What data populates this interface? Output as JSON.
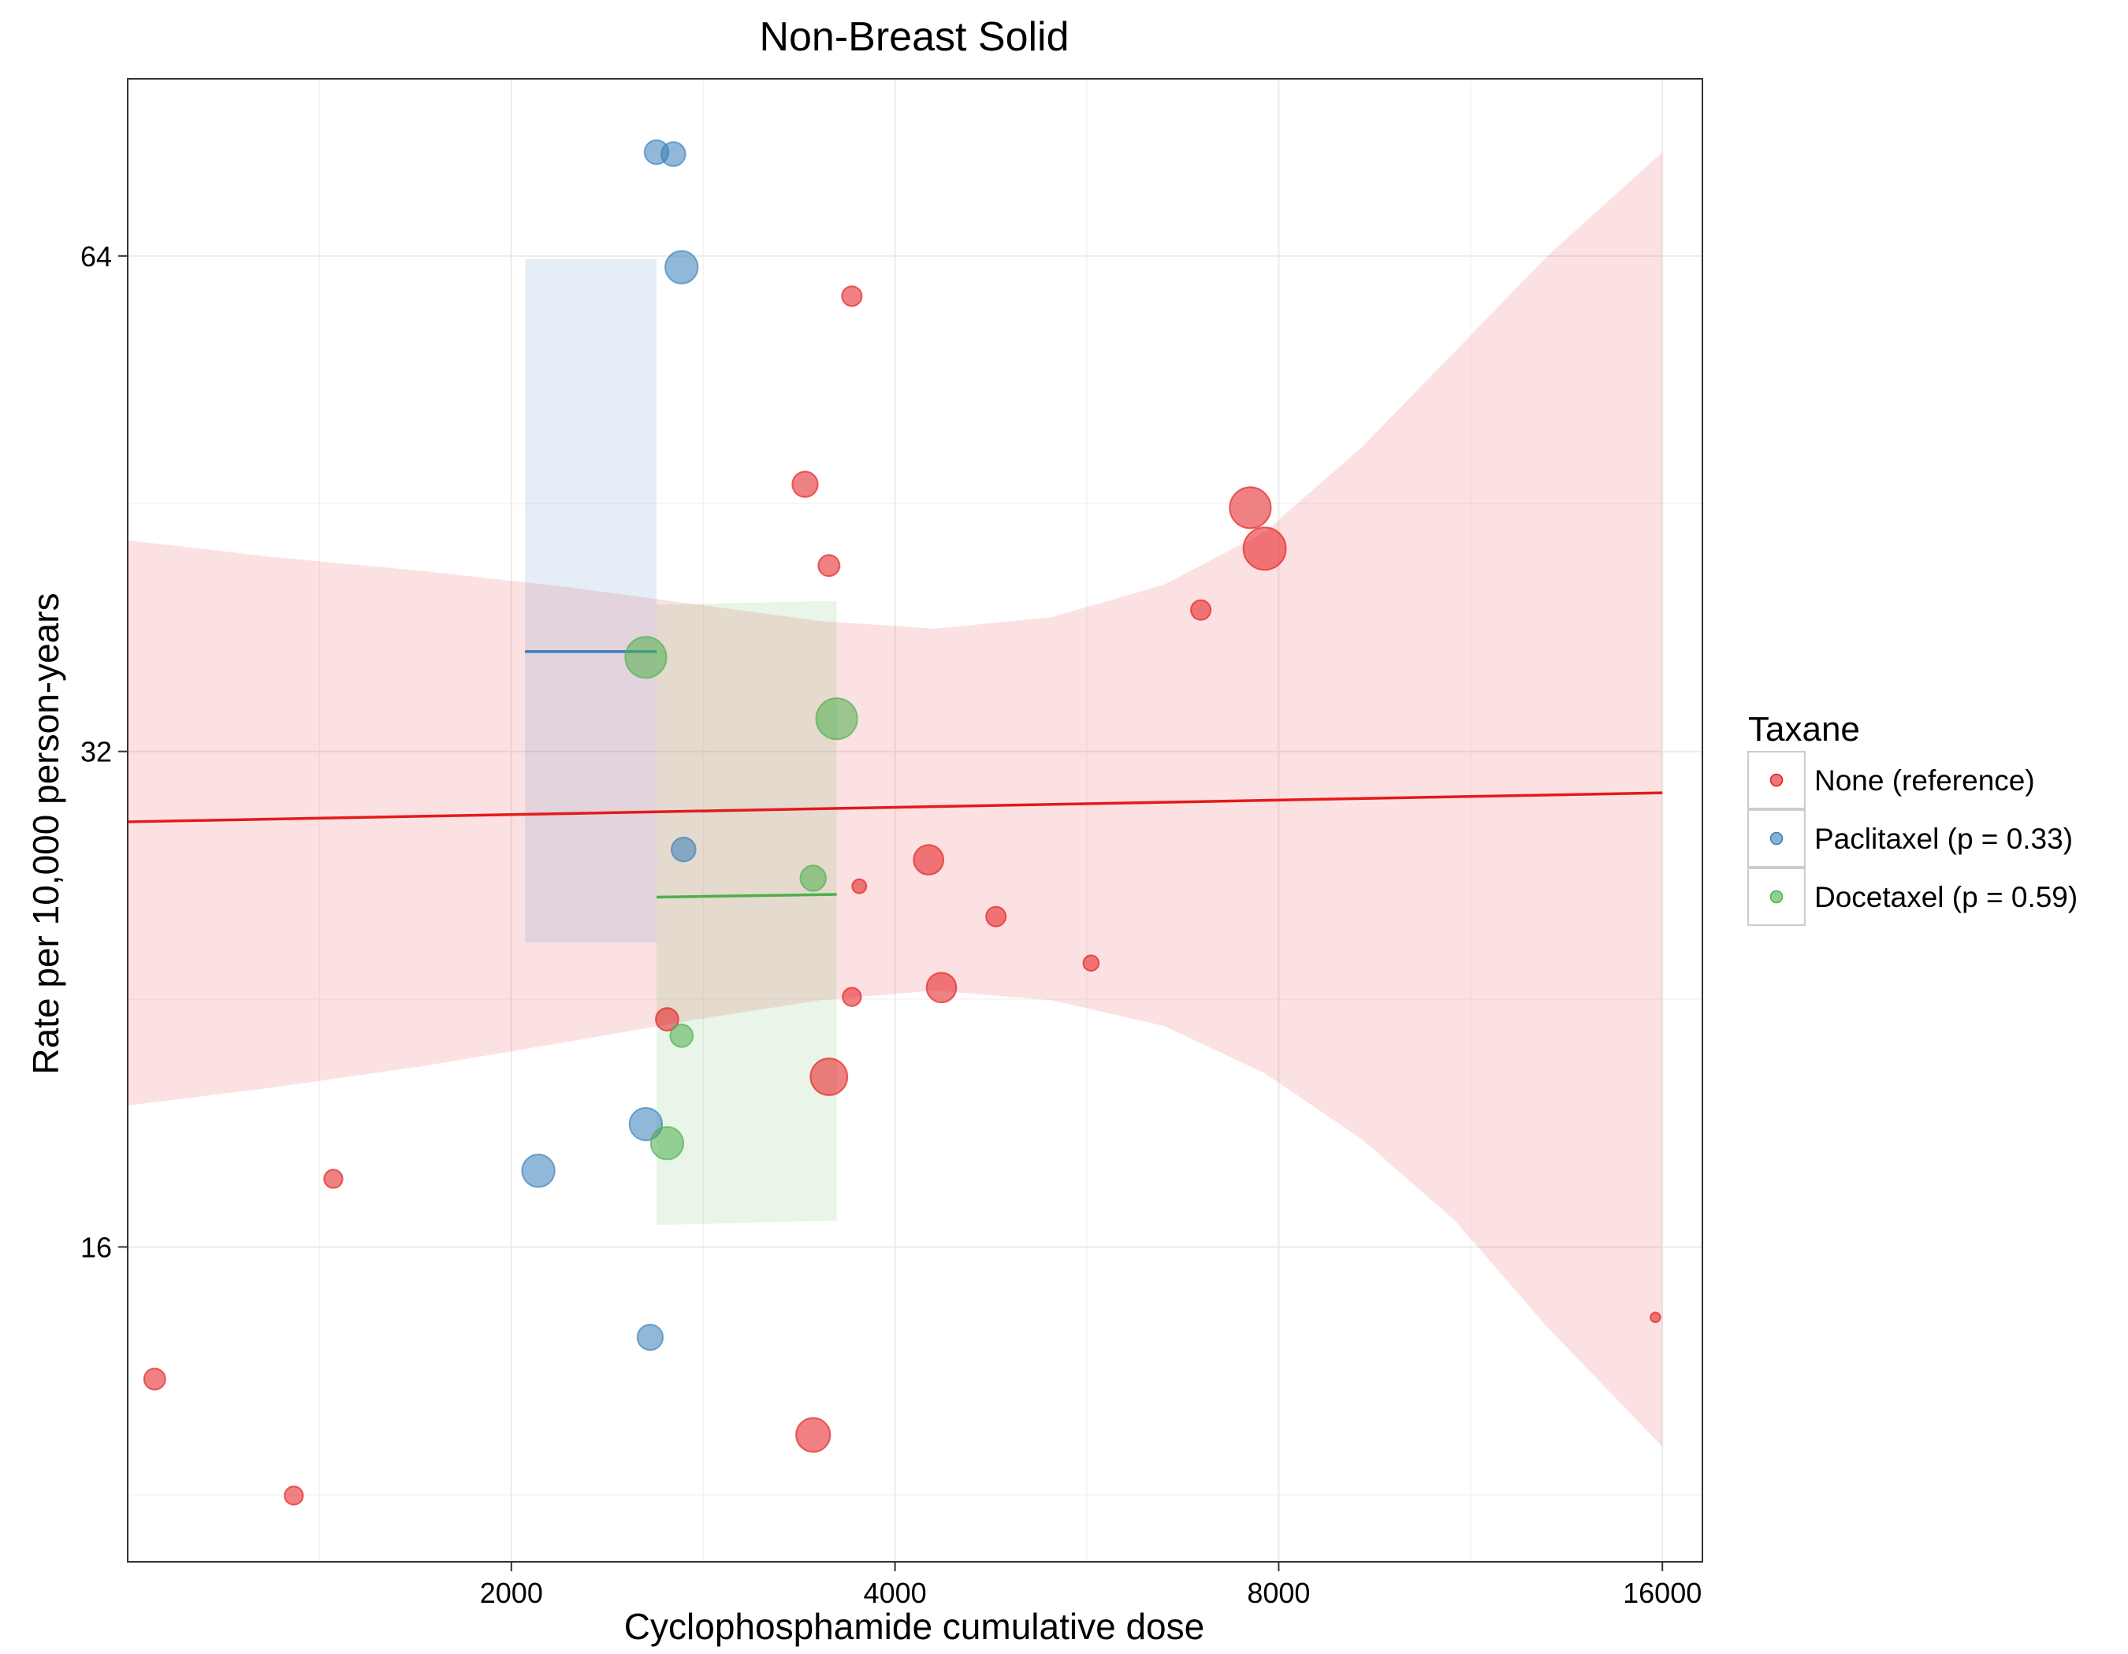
{
  "chart_data": {
    "type": "scatter",
    "title": "Non-Breast Solid",
    "xlabel": "Cyclophosphamide cumulative dose",
    "ylabel": "Rate per 10,000 person-years",
    "x_scale": "log2",
    "y_scale": "log2",
    "xlim": [
      1000,
      17200
    ],
    "ylim": [
      10.3,
      82
    ],
    "x_ticks": [
      2000,
      4000,
      8000,
      16000
    ],
    "y_ticks": [
      16,
      32,
      64
    ],
    "grid": true,
    "legend": {
      "title": "Taxane",
      "position": "right",
      "entries": [
        {
          "label": "None (reference)",
          "color": "#e41a1c"
        },
        {
          "label": "Paclitaxel (p = 0.33)",
          "color": "#377eb8"
        },
        {
          "label": "Docetaxel (p = 0.59)",
          "color": "#4daf4a"
        }
      ]
    },
    "series": [
      {
        "name": "None (reference)",
        "color": "#e41a1c",
        "points": [
          {
            "x": 1050,
            "y": 13.3,
            "size": 1.5
          },
          {
            "x": 1350,
            "y": 11.3,
            "size": 1.3
          },
          {
            "x": 1450,
            "y": 17.6,
            "size": 1.3
          },
          {
            "x": 2650,
            "y": 22.0,
            "size": 1.6
          },
          {
            "x": 3450,
            "y": 12.3,
            "size": 2.4
          },
          {
            "x": 3400,
            "y": 46.5,
            "size": 1.8
          },
          {
            "x": 3550,
            "y": 41.5,
            "size": 1.5
          },
          {
            "x": 3550,
            "y": 20.3,
            "size": 2.6
          },
          {
            "x": 3700,
            "y": 60.5,
            "size": 1.4
          },
          {
            "x": 3700,
            "y": 22.7,
            "size": 1.3
          },
          {
            "x": 3750,
            "y": 26.5,
            "size": 1.0
          },
          {
            "x": 4250,
            "y": 27.5,
            "size": 2.1
          },
          {
            "x": 4350,
            "y": 23.0,
            "size": 2.1
          },
          {
            "x": 4800,
            "y": 25.4,
            "size": 1.4
          },
          {
            "x": 5700,
            "y": 23.8,
            "size": 1.1
          },
          {
            "x": 6950,
            "y": 39.0,
            "size": 1.4
          },
          {
            "x": 7600,
            "y": 45.0,
            "size": 2.9
          },
          {
            "x": 7800,
            "y": 42.5,
            "size": 3.0
          },
          {
            "x": 15800,
            "y": 14.5,
            "size": 0.7
          }
        ],
        "fit": {
          "x": [
            1000,
            16000
          ],
          "y": [
            29.0,
            30.2
          ]
        },
        "ci": {
          "x": [
            1000,
            1300,
            1700,
            2200,
            2800,
            3500,
            4300,
            5300,
            6500,
            7800,
            9300,
            11000,
            13000,
            16000
          ],
          "lower": [
            19.5,
            20.0,
            20.6,
            21.3,
            22.0,
            22.6,
            22.9,
            22.6,
            21.8,
            20.4,
            18.6,
            16.6,
            14.3,
            12.1
          ],
          "upper": [
            43.0,
            42.0,
            41.2,
            40.3,
            39.3,
            38.4,
            38.0,
            38.6,
            40.4,
            43.5,
            49.0,
            56.0,
            64.0,
            74.0
          ]
        }
      },
      {
        "name": "Paclitaxel (p = 0.33)",
        "color": "#377eb8",
        "points": [
          {
            "x": 2600,
            "y": 74.0,
            "size": 1.7
          },
          {
            "x": 2680,
            "y": 73.8,
            "size": 1.7
          },
          {
            "x": 2720,
            "y": 63.0,
            "size": 2.3
          },
          {
            "x": 2100,
            "y": 17.8,
            "size": 2.3
          },
          {
            "x": 2550,
            "y": 19.0,
            "size": 2.3
          },
          {
            "x": 2570,
            "y": 14.1,
            "size": 1.8
          },
          {
            "x": 2730,
            "y": 27.9,
            "size": 1.7
          }
        ],
        "fit": {
          "x": [
            2050,
            2600
          ],
          "y": [
            36.8,
            36.8
          ]
        },
        "ci": {
          "x": [
            2050,
            2600
          ],
          "lower": [
            24.5,
            24.5
          ],
          "upper": [
            63.7,
            63.7
          ]
        }
      },
      {
        "name": "Docetaxel (p = 0.59)",
        "color": "#4daf4a",
        "points": [
          {
            "x": 2550,
            "y": 36.5,
            "size": 2.9
          },
          {
            "x": 3600,
            "y": 33.5,
            "size": 2.9
          },
          {
            "x": 3450,
            "y": 26.8,
            "size": 1.8
          },
          {
            "x": 2650,
            "y": 18.5,
            "size": 2.3
          },
          {
            "x": 2720,
            "y": 21.5,
            "size": 1.6
          }
        ],
        "fit": {
          "x": [
            2600,
            3600
          ],
          "y": [
            26.1,
            26.2
          ]
        },
        "ci": {
          "x": [
            2600,
            3600
          ],
          "lower": [
            16.5,
            16.6
          ],
          "upper": [
            39.3,
            39.5
          ]
        }
      }
    ]
  }
}
